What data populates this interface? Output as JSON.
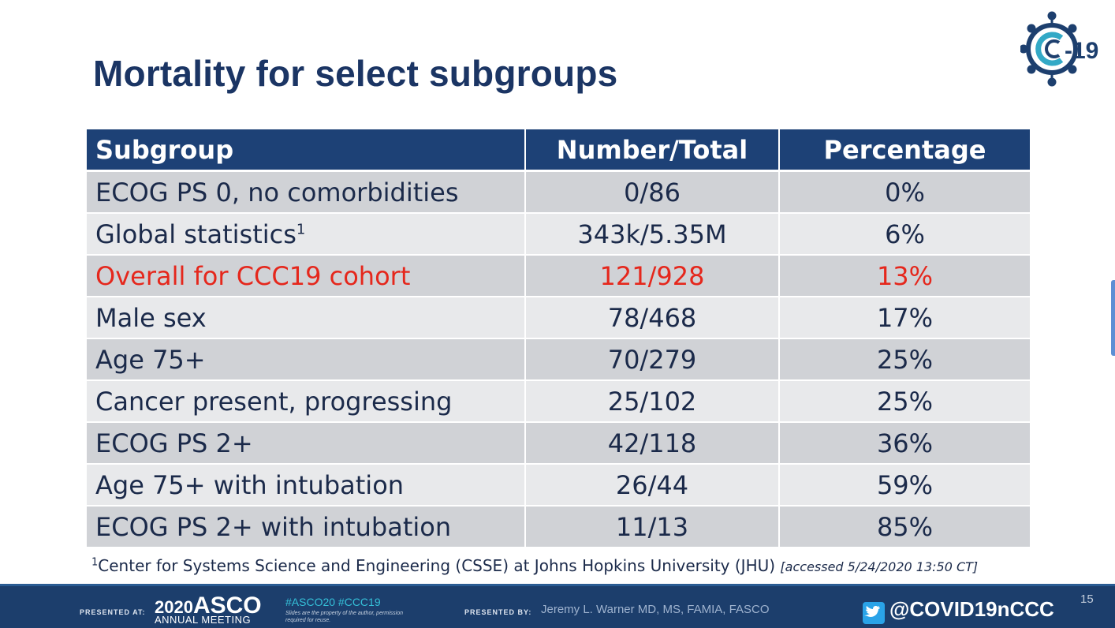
{
  "slide": {
    "title": "Mortality for select subgroups",
    "logo_text": "C-19",
    "page_number": "15"
  },
  "table": {
    "headers": [
      "Subgroup",
      "Number/Total",
      "Percentage"
    ],
    "rows": [
      {
        "subgroup": "ECOG PS 0, no comorbidities",
        "number_total": "0/86",
        "percentage": "0%"
      },
      {
        "subgroup": "Global statistics",
        "sup": "1",
        "number_total": "343k/5.35M",
        "percentage": "6%"
      },
      {
        "subgroup": "Overall for CCC19 cohort",
        "number_total": "121/928",
        "percentage": "13%",
        "highlight": true
      },
      {
        "subgroup": "Male sex",
        "number_total": "78/468",
        "percentage": "17%"
      },
      {
        "subgroup": "Age 75+",
        "number_total": "70/279",
        "percentage": "25%"
      },
      {
        "subgroup": "Cancer present, progressing",
        "number_total": "25/102",
        "percentage": "25%"
      },
      {
        "subgroup": "ECOG PS 2+",
        "number_total": "42/118",
        "percentage": "36%"
      },
      {
        "subgroup": "Age 75+ with intubation",
        "number_total": "26/44",
        "percentage": "59%"
      },
      {
        "subgroup": "ECOG PS 2+ with intubation",
        "number_total": "11/13",
        "percentage": "85%"
      }
    ],
    "highlight_color": "#e5271c",
    "header_color": "#1d4176"
  },
  "footnote": {
    "marker": "1",
    "text": "Center for Systems Science and Engineering (CSSE) at Johns Hopkins University (JHU)",
    "accessed": "[accessed 5/24/2020 13:50 CT]"
  },
  "footer": {
    "presented_at_label": "PRESENTED AT:",
    "meeting_year": "2020",
    "meeting_brand": "ASCO",
    "meeting_sub": "ANNUAL MEETING",
    "hashtags": "#ASCO20  #CCC19",
    "rights": "Slides are the property of the author, permission required for reuse.",
    "presented_by_label": "PRESENTED BY:",
    "presenter": "Jeremy L. Warner MD, MS, FAMIA, FASCO",
    "twitter_handle": "@COVID19nCCC",
    "icon": "twitter-icon"
  }
}
